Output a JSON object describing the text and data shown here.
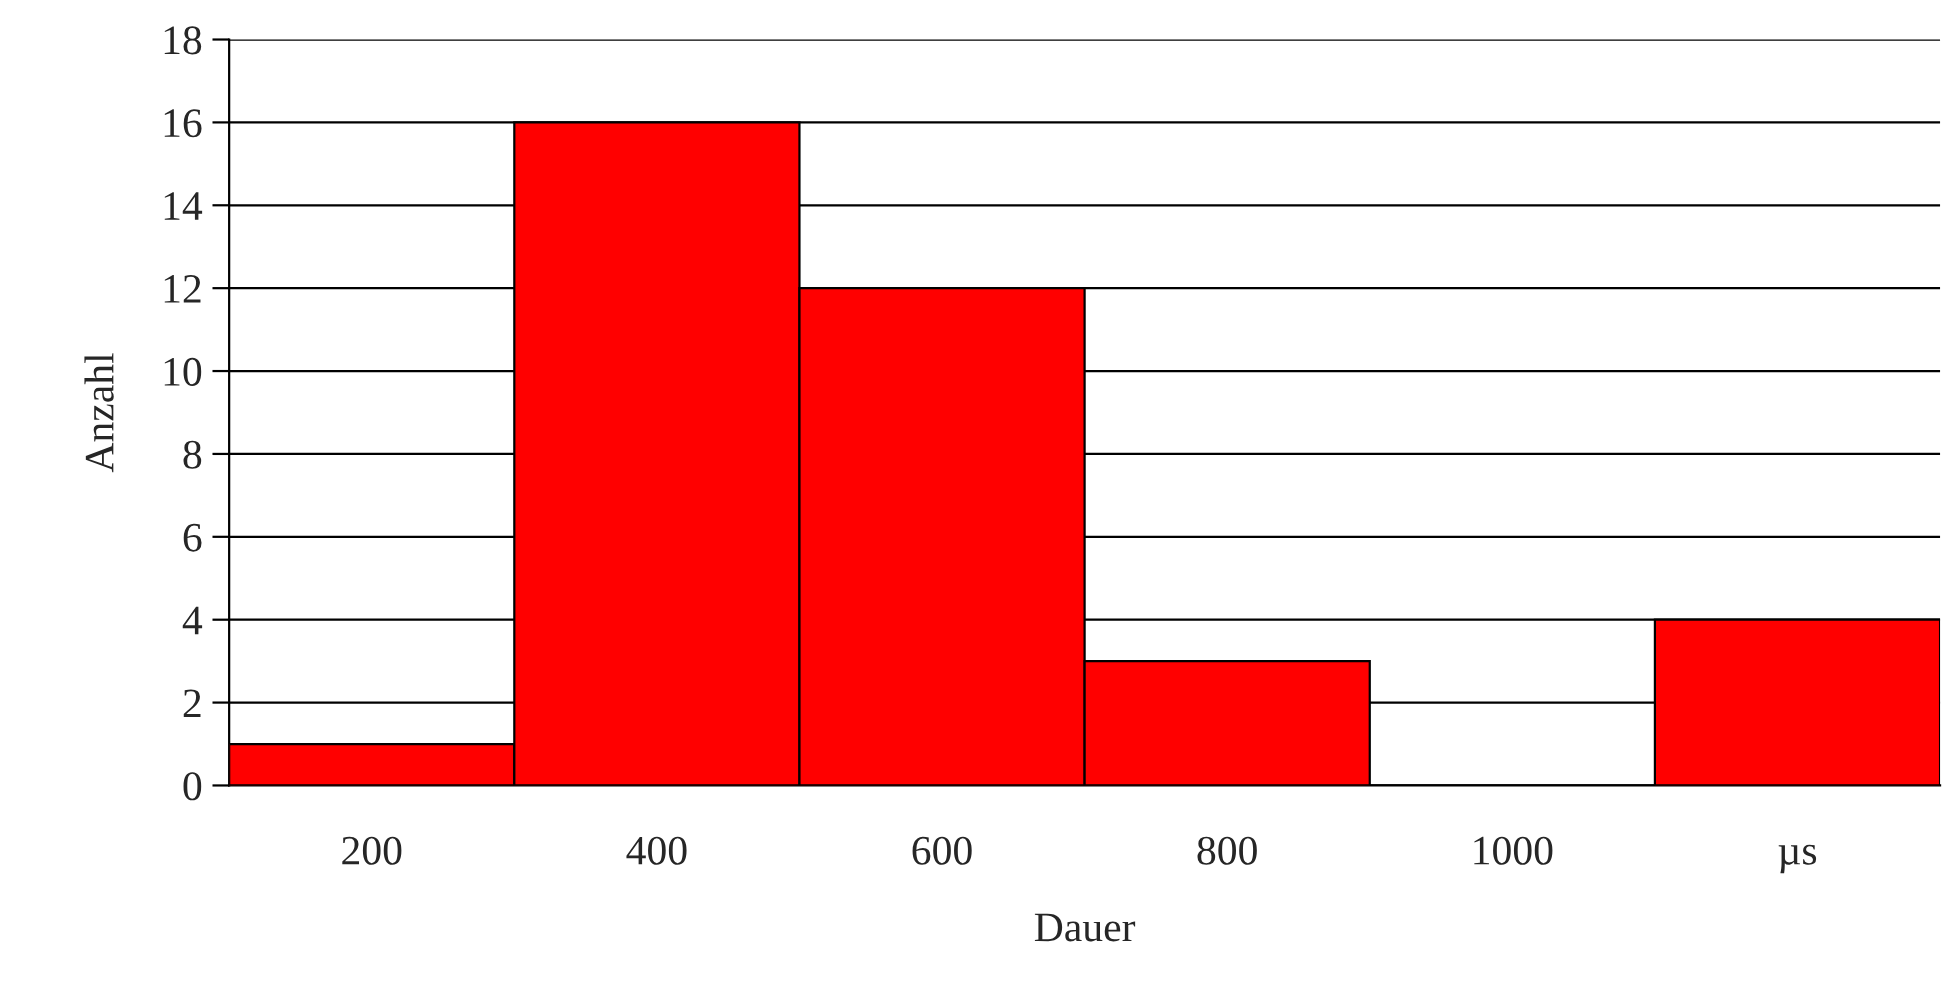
{
  "chart_data": {
    "type": "bar",
    "xlabel": "Dauer",
    "ylabel": "Anzahl",
    "categories": [
      "200",
      "400",
      "600",
      "800",
      "1000",
      "µs"
    ],
    "values": [
      1,
      16,
      12,
      3,
      0,
      4
    ],
    "color": "#ff0000",
    "ylim": [
      0,
      18
    ],
    "yticks": [
      0,
      2,
      4,
      6,
      8,
      10,
      12,
      14,
      16,
      18
    ],
    "grid": "y",
    "legend": false
  }
}
